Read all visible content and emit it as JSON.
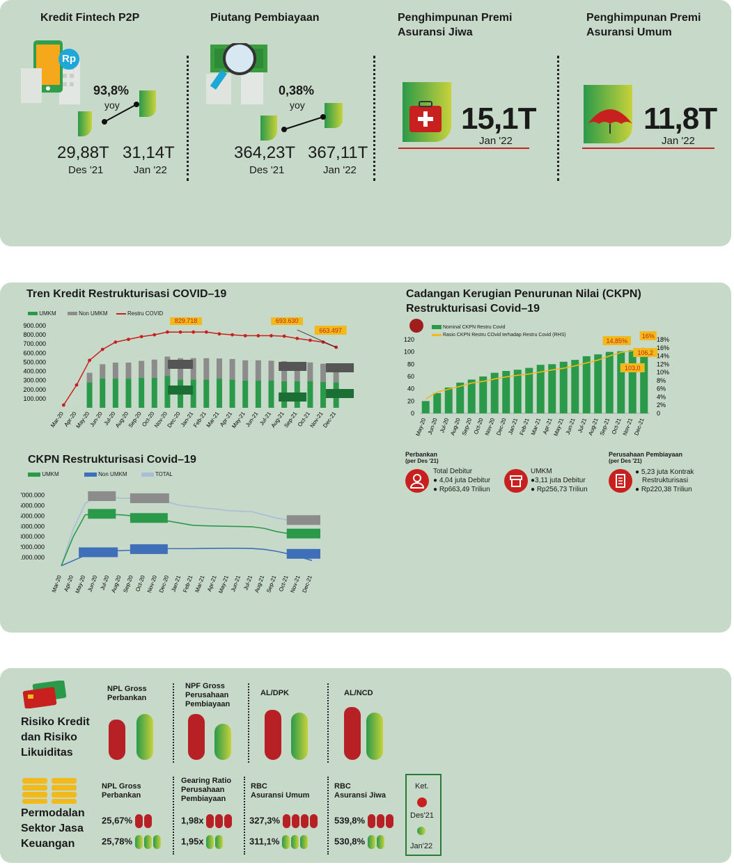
{
  "top": {
    "fintech": {
      "title": "Kredit Fintech P2P",
      "pct": "93,8%",
      "yoy": "yoy",
      "v1": "29,88T",
      "d1": "Des '21",
      "v2": "31,14T",
      "d2": "Jan '22",
      "badge": "Rp"
    },
    "piutang": {
      "title": "Piutang Pembiayaan",
      "pct": "0,38%",
      "yoy": "yoy",
      "v1": "364,23T",
      "d1": "Des '21",
      "v2": "367,11T",
      "d2": "Jan '22"
    },
    "jiwa": {
      "title1": "Penghimpunan Premi",
      "title2": "Asuransi Jiwa",
      "value": "15,1T",
      "date": "Jan '22"
    },
    "umum": {
      "title1": "Penghimpunan Premi",
      "title2": "Asuransi Umum",
      "value": "11,8T",
      "date": "Jan '22"
    }
  },
  "colors": {
    "panel": "#c7d9c9",
    "umkm": "#2a9a4a",
    "nonumkm": "#8c8c8c",
    "restru": "#c8201e",
    "ckpnbar": "#2a9a4a",
    "ratio": "#f2b91a",
    "total": "#a9bdd6",
    "nonumkm_blue": "#3e6fb8"
  },
  "chart_data": [
    {
      "type": "bar",
      "title": "Tren Kredit Restrukturisasi COVID–19",
      "legend": [
        "UMKM",
        "Non UMKM",
        "Restru COVID"
      ],
      "categories": [
        "Mar-20",
        "Apr-20",
        "May-20",
        "Jun-20",
        "Jul-20",
        "Aug-20",
        "Sep-20",
        "Oct-20",
        "Nov-20",
        "Dec-20",
        "Jan-21",
        "Feb-21",
        "Mar-21",
        "Apr-21",
        "May-21",
        "Jun-21",
        "Jul-21",
        "Aug-21",
        "Sep-21",
        "Oct-21",
        "Nov-21",
        "Dec-21"
      ],
      "series": [
        {
          "name": "UMKM",
          "values": [
            null,
            null,
            280000,
            320000,
            320000,
            320000,
            330000,
            330000,
            350000,
            310000,
            310000,
            310000,
            320000,
            310000,
            300000,
            300000,
            300000,
            290000,
            290000,
            290000,
            285000,
            280000
          ]
        },
        {
          "name": "Non UMKM",
          "values": [
            null,
            null,
            230000,
            350000,
            390000,
            390000,
            410000,
            440000,
            470000,
            520000,
            520000,
            520000,
            490000,
            500000,
            490000,
            490000,
            480000,
            490000,
            460000,
            460000,
            440000,
            390000
          ]
        },
        {
          "name": "Restru COVID",
          "values": [
            30000,
            250000,
            520000,
            640000,
            720000,
            750000,
            780000,
            800000,
            830000,
            829718,
            830000,
            830000,
            810000,
            800000,
            790000,
            790000,
            790000,
            785000,
            760000,
            740000,
            720000,
            663497
          ]
        }
      ],
      "yticks": [
        "900.000",
        "800.000",
        "700.000",
        "600.000",
        "500.000",
        "400.000",
        "300.000",
        "200.000",
        "100.000"
      ],
      "ylim": [
        0,
        900000
      ],
      "callouts": [
        "829.718",
        "693.630",
        "663.497"
      ]
    },
    {
      "type": "bar",
      "title": "Cadangan Kerugian Penurunan Nilai (CKPN)",
      "title2": "Restrukturisasi Covid–19",
      "legend": [
        "Nominal CKPN Restru Covid",
        "Rasio CKPN Restru COvid terhadap Restru Covid (RHS)"
      ],
      "categories": [
        "May-20",
        "Jun-20",
        "Jul-20",
        "Aug-20",
        "Sep-20",
        "Oct-20",
        "Nov-20",
        "Dec-20",
        "Jan-21",
        "Feb-21",
        "Mar-21",
        "Apr-21",
        "May-21",
        "Jun-21",
        "Jul-21",
        "Aug-21",
        "Sep-21",
        "Oct-21",
        "Nov-21",
        "Dec-21"
      ],
      "series": [
        {
          "name": "Nominal CKPN Restru Covid",
          "values": [
            20,
            33,
            42,
            50,
            55,
            60,
            66,
            69,
            71,
            74,
            79,
            80,
            84,
            87,
            93,
            96,
            100,
            101,
            103,
            106.2
          ]
        },
        {
          "name": "Rasio CKPN Restru COvid terhadap Restru Covid (RHS)",
          "values": [
            3.5,
            5.2,
            5.9,
            6.6,
            7.4,
            7.8,
            8.4,
            8.9,
            9.3,
            9.6,
            10.1,
            10.6,
            11.0,
            11.6,
            12.3,
            13.0,
            14.0,
            14.85,
            15.3,
            16.0
          ]
        }
      ],
      "yticks_left": [
        "120",
        "100",
        "80",
        "60",
        "40",
        "20",
        "0"
      ],
      "yticks_right": [
        "18%",
        "16%",
        "14%",
        "12%",
        "10%",
        "8%",
        "6%",
        "4%",
        "2%",
        "0"
      ],
      "ylim": [
        0,
        120
      ],
      "ylim_right": [
        0,
        18
      ],
      "callouts": [
        "14,85%",
        "16%",
        "106,2",
        "103,0"
      ]
    },
    {
      "type": "line",
      "title": "CKPN Restrukturisasi Covid–19",
      "legend": [
        "UMKM",
        "Non UMKM",
        "TOTAL"
      ],
      "categories": [
        "Mar-20",
        "Apr-20",
        "May-20",
        "Jun-20",
        "Jul-20",
        "Aug-20",
        "Sep-20",
        "Oct-20",
        "Nov-20",
        "Dec-20",
        "Jan-21",
        "Feb-21",
        "Mar-21",
        "Apr-21",
        "May-21",
        "Jun-21",
        "Jul-21",
        "Aug-21",
        "Sep-21",
        "Oct-21",
        "Nov-21",
        "Dec-21"
      ],
      "series": [
        {
          "name": "TOTAL",
          "values": [
            200,
            3700,
            6200,
            6900,
            6800,
            6700,
            6700,
            6500,
            6400,
            6300,
            6000,
            5900,
            5750,
            5650,
            5500,
            5450,
            5400,
            5100,
            4800,
            4600,
            4400,
            4300
          ]
        },
        {
          "name": "UMKM",
          "values": [
            200,
            3000,
            5100,
            5200,
            5150,
            5100,
            5000,
            4800,
            4600,
            4500,
            4300,
            4100,
            4050,
            4020,
            4000,
            3980,
            3950,
            3800,
            3500,
            3300,
            3100,
            3000
          ]
        },
        {
          "name": "Non UMKM",
          "values": [
            200,
            700,
            1200,
            1500,
            1650,
            1650,
            1700,
            1750,
            1800,
            1850,
            1850,
            1850,
            1870,
            1880,
            1890,
            1880,
            1860,
            1780,
            1600,
            1350,
            1050,
            700
          ]
        }
      ],
      "yticks": [
        "7000.000",
        "6000.000",
        "5000.000",
        "4000.000",
        "3000.000",
        "2000.000",
        "1000.000"
      ],
      "ylim": [
        0,
        7500
      ]
    }
  ],
  "ckpn_info": {
    "perbankan": {
      "title": "Perbankan",
      "sub": "(per Des '21)",
      "l1": "Total Debitur",
      "l2": "4,04 juta Debitur",
      "l3": "Rp663,49 Triliun"
    },
    "umkm": {
      "title": "UMKM",
      "l1": "3,11 juta Debitur",
      "l2": "Rp256,73  Triliun"
    },
    "pp": {
      "title": "Perusahaan Pembiayaan",
      "sub": "(per Des '21)",
      "l1": "5,23 juta Kontrak",
      "l2": "Restrukturisasi",
      "l3": "Rp220,38 Triliun"
    }
  },
  "risk": {
    "title1": "Risiko Kredit",
    "title2": "dan Risiko",
    "title3": "Likuiditas",
    "npl": {
      "l1": "NPL Gross",
      "l2": "Perbankan"
    },
    "npf": {
      "l1": "NPF Gross",
      "l2": "Perusahaan",
      "l3": "Pembiayaan"
    },
    "aldpk": "AL/DPK",
    "alncd": "AL/NCD"
  },
  "capital": {
    "title1": "Permodalan",
    "title2": "Sektor Jasa",
    "title3": "Keuangan",
    "npl": {
      "l1": "NPL Gross",
      "l2": "Perbankan",
      "v1": "25,67%",
      "v2": "25,78%"
    },
    "gearing": {
      "l1": "Gearing Ratio",
      "l2": "Perusahaan",
      "l3": "Pembiayaan",
      "v1": "1,98x",
      "v2": "1,95x"
    },
    "rbcu": {
      "l1": "RBC",
      "l2": "Asuransi Umum",
      "v1": "327,3%",
      "v2": "311,1%"
    },
    "rbcj": {
      "l1": "RBC",
      "l2": "Asuransi Jiwa",
      "v1": "539,8%",
      "v2": "530,8%"
    },
    "ket": {
      "title": "Ket.",
      "a": "Des'21",
      "b": "Jan'22"
    }
  }
}
